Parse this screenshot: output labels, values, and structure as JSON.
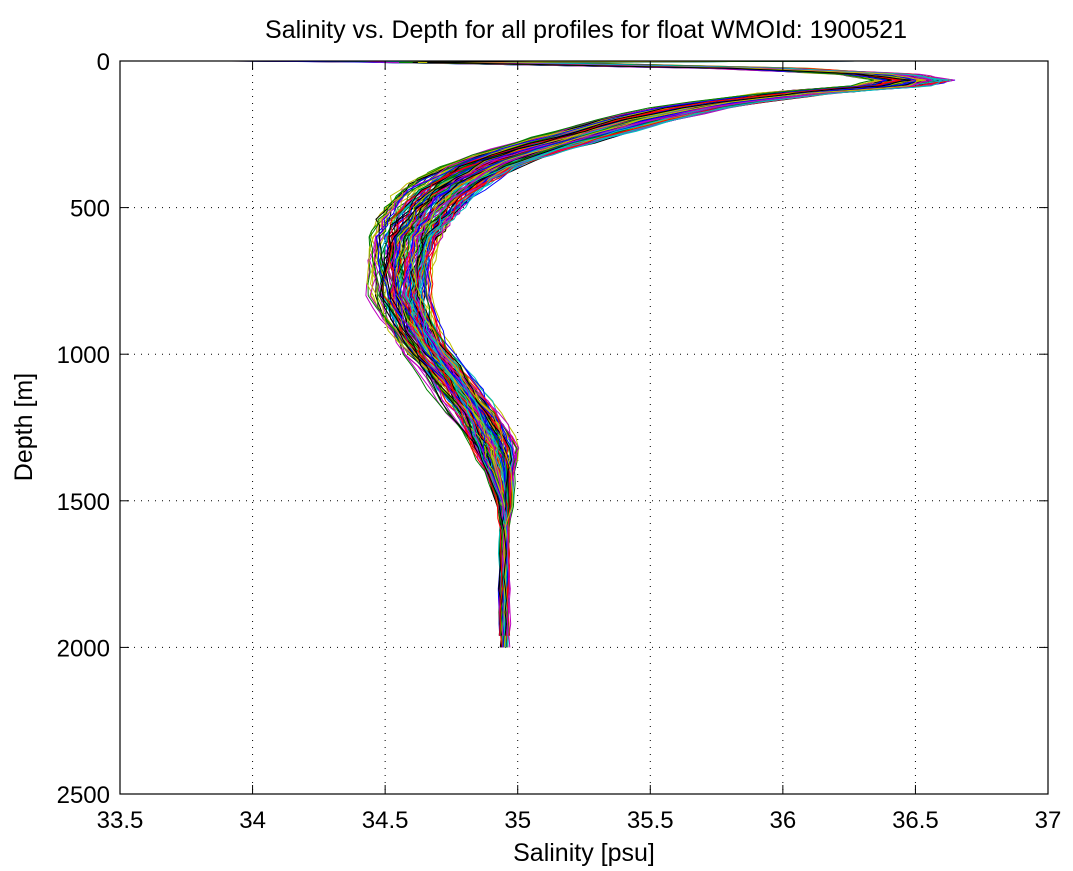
{
  "chart_data": {
    "type": "line",
    "title": "Salinity vs. Depth for all profiles for float WMOId: 1900521",
    "xlabel": "Salinity [psu]",
    "ylabel": "Depth [m]",
    "xlim": [
      33.5,
      37
    ],
    "ylim": [
      0,
      2500
    ],
    "y_reversed": true,
    "grid": true,
    "legend": "none",
    "xticks": [
      "33.5",
      "34",
      "34.5",
      "35",
      "35.5",
      "36",
      "36.5",
      "37"
    ],
    "yticks": [
      "0",
      "500",
      "1000",
      "1500",
      "2000",
      "2500"
    ],
    "mean_profile": {
      "depth": [
        0,
        10,
        25,
        45,
        65,
        85,
        110,
        150,
        200,
        250,
        300,
        350,
        400,
        450,
        500,
        550,
        600,
        700,
        800,
        900,
        1000,
        1100,
        1200,
        1300,
        1400,
        1500,
        1600,
        1700,
        1800,
        1900,
        2000
      ],
      "salinity": [
        34.5,
        35.1,
        35.9,
        36.35,
        36.5,
        36.4,
        36.05,
        35.7,
        35.45,
        35.25,
        35.05,
        34.88,
        34.78,
        34.7,
        34.65,
        34.61,
        34.58,
        34.56,
        34.56,
        34.6,
        34.67,
        34.76,
        34.84,
        34.9,
        34.93,
        34.95,
        34.95,
        34.95,
        34.95,
        34.95,
        34.95
      ]
    },
    "profile_count": 140,
    "colors": [
      "#0000ff",
      "#008000",
      "#ff0000",
      "#00bfbf",
      "#bf00bf",
      "#bfbf00",
      "#000000"
    ]
  }
}
